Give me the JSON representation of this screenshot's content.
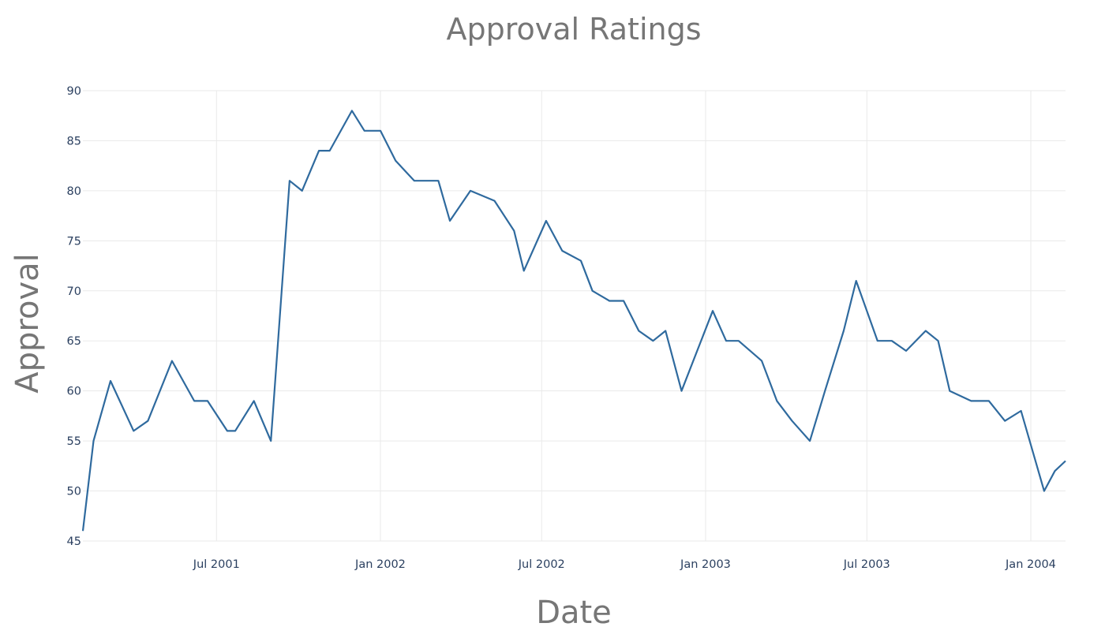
{
  "chart_data": {
    "type": "line",
    "title": "Approval Ratings",
    "xlabel": "Date",
    "ylabel": "Approval",
    "xlim": [
      "2001-02-01",
      "2004-02-09"
    ],
    "ylim": [
      45,
      90
    ],
    "x_ticks": [
      {
        "date": "2001-07-01",
        "label": "Jul 2001"
      },
      {
        "date": "2002-01-01",
        "label": "Jan 2002"
      },
      {
        "date": "2002-07-01",
        "label": "Jul 2002"
      },
      {
        "date": "2003-01-01",
        "label": "Jan 2003"
      },
      {
        "date": "2003-07-01",
        "label": "Jul 2003"
      },
      {
        "date": "2004-01-01",
        "label": "Jan 2004"
      }
    ],
    "y_ticks": [
      45,
      50,
      55,
      60,
      65,
      70,
      75,
      80,
      85,
      90
    ],
    "grid": true,
    "series": [
      {
        "color": "#2f6a9e",
        "x": [
          "2001-02-01",
          "2001-02-13",
          "2001-03-04",
          "2001-03-30",
          "2001-04-15",
          "2001-05-12",
          "2001-06-06",
          "2001-06-21",
          "2001-07-13",
          "2001-07-22",
          "2001-08-12",
          "2001-08-31",
          "2001-09-21",
          "2001-10-05",
          "2001-10-24",
          "2001-11-05",
          "2001-11-30",
          "2001-12-14",
          "2002-01-01",
          "2002-01-18",
          "2002-02-08",
          "2002-03-07",
          "2002-03-20",
          "2002-04-12",
          "2002-05-09",
          "2002-05-31",
          "2002-06-11",
          "2002-07-06",
          "2002-07-24",
          "2002-08-14",
          "2002-08-27",
          "2002-09-15",
          "2002-10-01",
          "2002-10-18",
          "2002-11-03",
          "2002-11-17",
          "2002-12-05",
          "2003-01-09",
          "2003-01-24",
          "2003-02-07",
          "2003-03-05",
          "2003-03-22",
          "2003-04-08",
          "2003-04-28",
          "2003-05-15",
          "2003-06-05",
          "2003-06-19",
          "2003-07-13",
          "2003-07-29",
          "2003-08-14",
          "2003-09-05",
          "2003-09-19",
          "2003-10-02",
          "2003-10-26",
          "2003-11-15",
          "2003-12-03",
          "2003-12-21",
          "2004-01-16",
          "2004-01-28",
          "2004-02-09"
        ],
        "values": [
          46,
          55,
          61,
          56,
          57,
          63,
          59,
          59,
          56,
          56,
          59,
          55,
          81,
          80,
          84,
          84,
          88,
          86,
          86,
          83,
          81,
          81,
          77,
          80,
          79,
          76,
          72,
          77,
          74,
          73,
          70,
          69,
          69,
          66,
          65,
          66,
          60,
          68,
          65,
          65,
          63,
          59,
          57,
          55,
          60,
          66,
          71,
          65,
          65,
          64,
          66,
          65,
          60,
          59,
          59,
          57,
          58,
          50,
          52,
          53
        ]
      }
    ]
  }
}
